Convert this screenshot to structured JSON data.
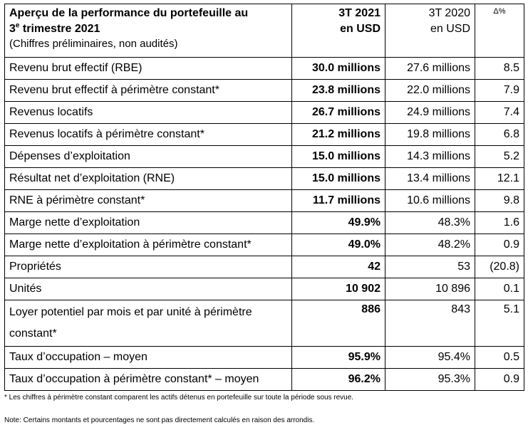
{
  "header": {
    "title_line1": "Aperçu de la performance du portefeuille au",
    "title_line2_num": "3",
    "title_line2_sup": "e",
    "title_line2_rest": " trimestre 2021",
    "subtitle": "(Chiffres préliminaires, non audités)",
    "col_current_line1": "3T 2021",
    "col_current_line2": "en USD",
    "col_prev_line1": "3T 2020",
    "col_prev_line2": "en USD",
    "col_delta": "Δ%"
  },
  "rows": [
    {
      "label": "Revenu brut effectif (RBE)",
      "current": "30.0 millions",
      "prev": "27.6 millions",
      "delta": "8.5"
    },
    {
      "label": "Revenu brut effectif à périmètre constant*",
      "current": "23.8 millions",
      "prev": "22.0 millions",
      "delta": "7.9"
    },
    {
      "label": "Revenus locatifs",
      "current": "26.7 millions",
      "prev": "24.9 millions",
      "delta": "7.4"
    },
    {
      "label": "Revenus locatifs à périmètre constant*",
      "current": "21.2 millions",
      "prev": "19.8 millions",
      "delta": "6.8"
    },
    {
      "label": "Dépenses d’exploitation",
      "current": "15.0 millions",
      "prev": "14.3 millions",
      "delta": "5.2"
    },
    {
      "label": "Résultat net d’exploitation (RNE)",
      "current": "15.0 millions",
      "prev": "13.4 millions",
      "delta": "12.1"
    },
    {
      "label": "RNE à périmètre constant*",
      "current": "11.7 millions",
      "prev": "10.6 millions",
      "delta": "9.8"
    },
    {
      "label": "Marge nette d’exploitation",
      "current": "49.9%",
      "prev": "48.3%",
      "delta": "1.6"
    },
    {
      "label": "Marge nette d’exploitation à périmètre constant*",
      "current": "49.0%",
      "prev": "48.2%",
      "delta": "0.9"
    },
    {
      "label": "Propriétés",
      "current": "42",
      "prev": "53",
      "delta": "(20.8)"
    },
    {
      "label": "Unités",
      "current": "10 902",
      "prev": "10 896",
      "delta": "0.1"
    },
    {
      "label_line1": "Loyer potentiel par mois et par unité à périmètre",
      "label_line2": "constant*",
      "current": "886",
      "prev": "843",
      "delta": "5.1"
    },
    {
      "label": "Taux d’occupation – moyen",
      "current": "95.9%",
      "prev": "95.4%",
      "delta": "0.5"
    },
    {
      "label": "Taux d’occupation à périmètre constant* – moyen",
      "current": "96.2%",
      "prev": "95.3%",
      "delta": "0.9"
    }
  ],
  "footnotes": {
    "note1": "* Les chiffres à périmètre constant comparent les actifs détenus en portefeuille sur toute la période sous revue.",
    "note2": "Note: Certains montants et pourcentages ne sont pas directement calculés en raison des arrondis."
  }
}
